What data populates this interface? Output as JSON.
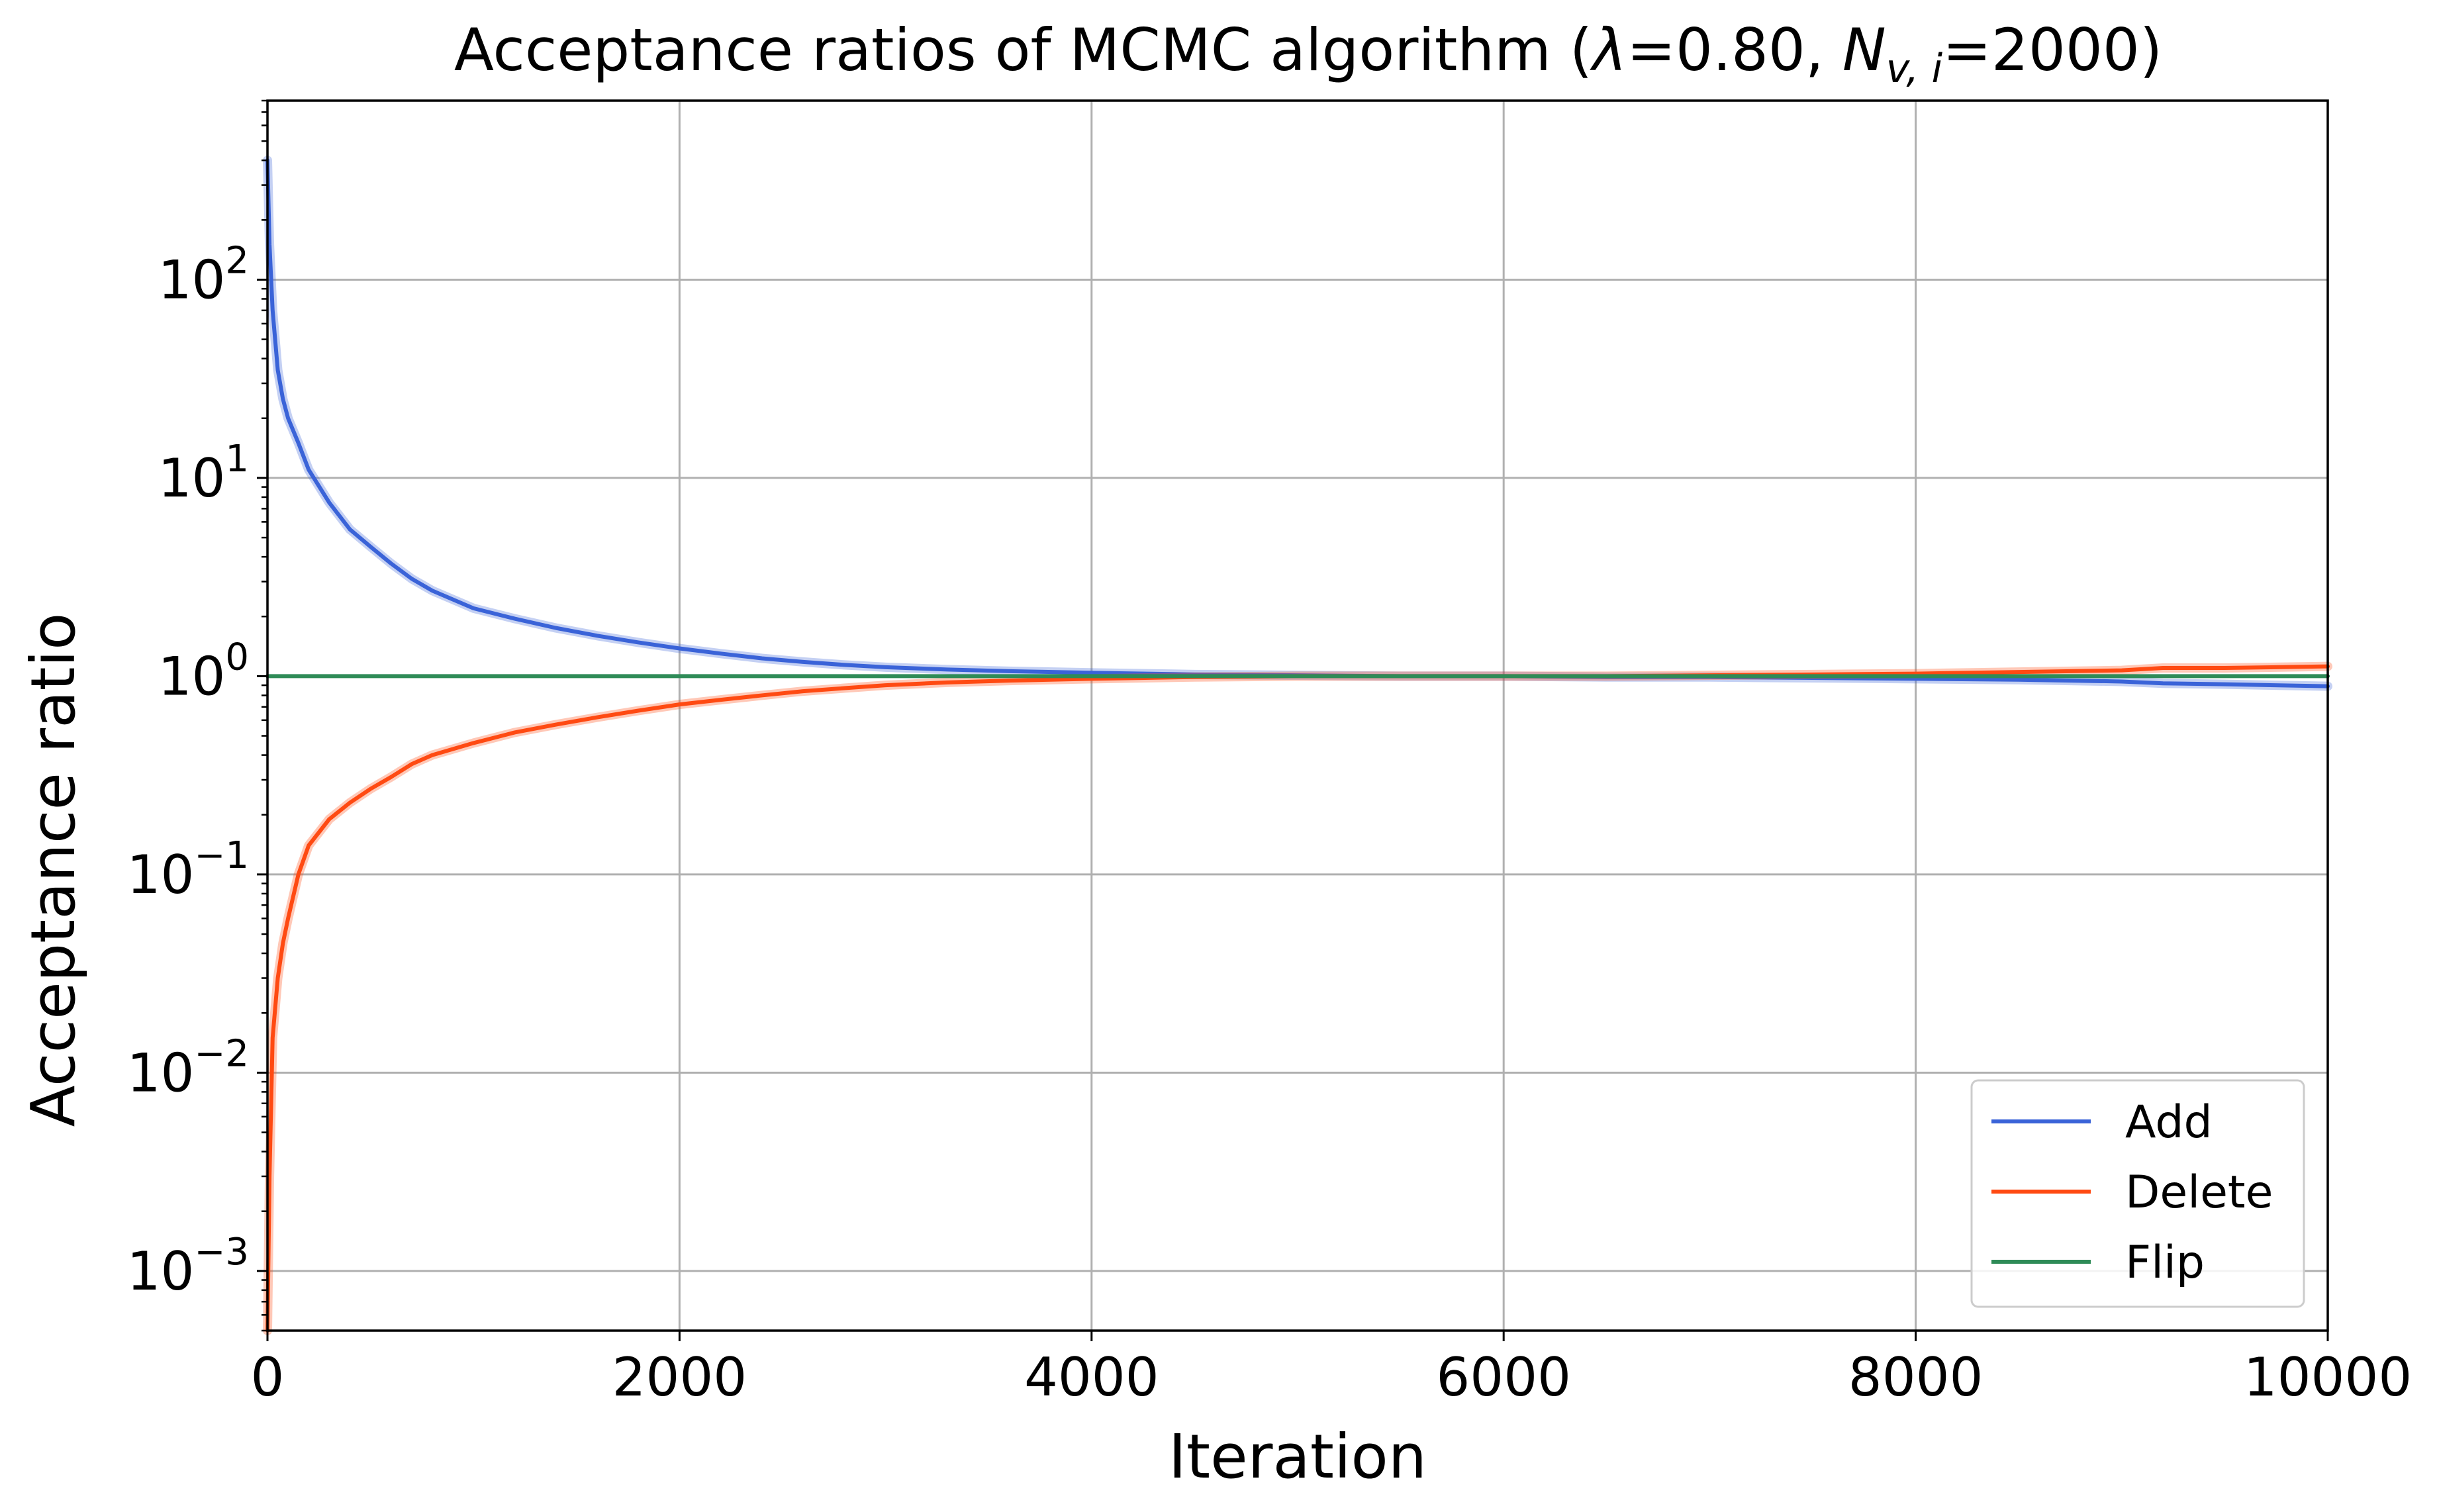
{
  "chart_data": {
    "type": "line",
    "title": "Acceptance ratios of MCMC algorithm (λ=0.80, N_{v,i}=2000)",
    "title_parts": {
      "prefix": "Acceptance ratios of MCMC algorithm (",
      "lambda": "λ",
      "lambda_value": "=0.80, ",
      "n_symbol": "N",
      "n_subscript": "v, i",
      "n_value": "=2000)"
    },
    "xlabel": "Iteration",
    "ylabel": "Acceptance ratio",
    "xlim": [
      0,
      10000
    ],
    "ylim": [
      0.0005,
      800
    ],
    "yscale": "log",
    "grid": true,
    "legend_position": "lower-right",
    "x_ticks": [
      {
        "value": 0,
        "label": "0"
      },
      {
        "value": 2000,
        "label": "2000"
      },
      {
        "value": 4000,
        "label": "4000"
      },
      {
        "value": 6000,
        "label": "6000"
      },
      {
        "value": 8000,
        "label": "8000"
      },
      {
        "value": 10000,
        "label": "10000"
      }
    ],
    "y_ticks": [
      {
        "value": 0.001,
        "base": "10",
        "exp": "−3"
      },
      {
        "value": 0.01,
        "base": "10",
        "exp": "−2"
      },
      {
        "value": 0.1,
        "base": "10",
        "exp": "−1"
      },
      {
        "value": 1,
        "base": "10",
        "exp": "0"
      },
      {
        "value": 10,
        "base": "10",
        "exp": "1"
      },
      {
        "value": 100,
        "base": "10",
        "exp": "2"
      }
    ],
    "series": [
      {
        "name": "Add",
        "color": "#3a63d8",
        "x": [
          0,
          10,
          25,
          50,
          75,
          100,
          150,
          200,
          300,
          400,
          500,
          600,
          700,
          800,
          1000,
          1200,
          1400,
          1600,
          1800,
          2000,
          2200,
          2400,
          2600,
          2800,
          3000,
          3300,
          3600,
          4000,
          4500,
          5000,
          5500,
          6000,
          6500,
          7000,
          7500,
          8000,
          8500,
          9000,
          9200,
          9500,
          10000
        ],
        "y": [
          400,
          150,
          70,
          35,
          25,
          20,
          15,
          11,
          7.5,
          5.5,
          4.5,
          3.7,
          3.1,
          2.7,
          2.2,
          1.95,
          1.75,
          1.6,
          1.48,
          1.38,
          1.3,
          1.23,
          1.18,
          1.14,
          1.11,
          1.08,
          1.06,
          1.04,
          1.02,
          1.01,
          1.0,
          1.0,
          0.99,
          0.99,
          0.98,
          0.97,
          0.96,
          0.94,
          0.92,
          0.91,
          0.89
        ]
      },
      {
        "name": "Delete",
        "color": "#ff4a12",
        "x": [
          0,
          10,
          25,
          50,
          75,
          100,
          150,
          200,
          300,
          400,
          500,
          600,
          700,
          800,
          1000,
          1200,
          1400,
          1600,
          1800,
          2000,
          2200,
          2400,
          2600,
          2800,
          3000,
          3300,
          3600,
          4000,
          4500,
          5000,
          5500,
          6000,
          6500,
          7000,
          7500,
          8000,
          8500,
          9000,
          9200,
          9500,
          10000
        ],
        "y": [
          0.0005,
          0.003,
          0.015,
          0.03,
          0.045,
          0.06,
          0.1,
          0.14,
          0.19,
          0.23,
          0.27,
          0.31,
          0.36,
          0.4,
          0.46,
          0.52,
          0.57,
          0.62,
          0.67,
          0.72,
          0.76,
          0.8,
          0.84,
          0.87,
          0.9,
          0.93,
          0.95,
          0.97,
          0.99,
          1.0,
          1.0,
          1.0,
          1.0,
          1.01,
          1.02,
          1.03,
          1.05,
          1.07,
          1.1,
          1.1,
          1.12
        ]
      },
      {
        "name": "Flip",
        "color": "#2e8b57",
        "x": [
          0,
          10000
        ],
        "y": [
          1,
          1
        ]
      }
    ]
  }
}
